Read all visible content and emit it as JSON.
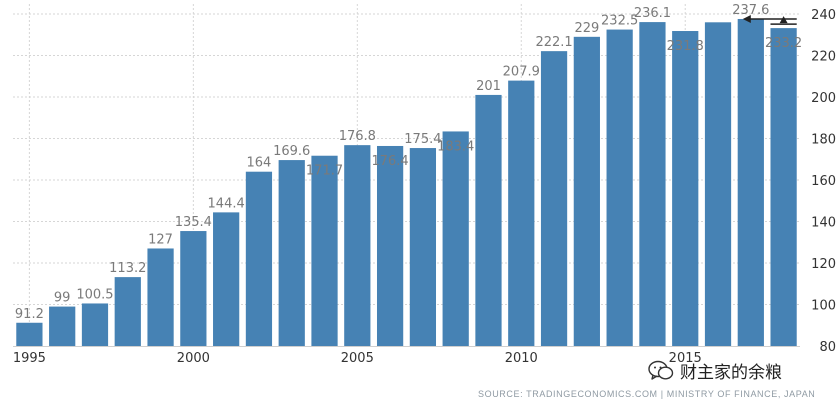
{
  "chart_data": {
    "type": "bar",
    "color": "#4682b4",
    "x": [
      1995,
      1996,
      1997,
      1998,
      1999,
      2000,
      2001,
      2002,
      2003,
      2004,
      2005,
      2006,
      2007,
      2008,
      2009,
      2010,
      2011,
      2012,
      2013,
      2014,
      2015,
      2016,
      2017,
      2018
    ],
    "values": [
      91.2,
      99,
      100.5,
      113.2,
      127,
      135.4,
      144.4,
      164,
      169.6,
      171.7,
      176.8,
      176.4,
      175.4,
      183.4,
      201,
      207.9,
      222.1,
      229,
      232.5,
      236.1,
      231.8,
      236,
      237.6,
      233.2
    ],
    "labels": [
      "91.2",
      "99",
      "100.5",
      "113.2",
      "127",
      "135.4",
      "144.4",
      "164",
      "169.6",
      "171.7",
      "176.8",
      "176.4",
      "175.4",
      "183.4",
      "201",
      "207.9",
      "222.1",
      "229",
      "232.5",
      "236.1",
      "231.8",
      "",
      "237.6",
      "233.2"
    ],
    "label_inside": [
      false,
      false,
      false,
      false,
      false,
      false,
      false,
      false,
      false,
      true,
      false,
      true,
      false,
      true,
      false,
      false,
      false,
      false,
      false,
      false,
      true,
      false,
      false,
      true
    ],
    "xticks": [
      "1995",
      "2000",
      "2005",
      "2010",
      "2015"
    ],
    "yticks": [
      "80",
      "100",
      "120",
      "140",
      "160",
      "180",
      "200",
      "220",
      "240"
    ],
    "ylim": [
      80,
      240
    ],
    "grid": true,
    "source": "SOURCE: TRADINGECONOMICS.COM | MINISTRY OF FINANCE, JAPAN"
  },
  "watermark": {
    "icon": "wechat-icon",
    "text": "财主家的余粮"
  }
}
